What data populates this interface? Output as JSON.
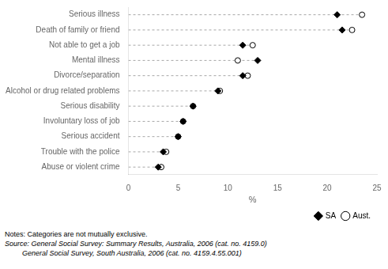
{
  "chart_data": {
    "type": "dot",
    "categories": [
      "Serious illness",
      "Death of family or friend",
      "Not able to get a job",
      "Mental illness",
      "Divorce/separation",
      "Alcohol or drug related problems",
      "Serious disability",
      "Involuntary loss of job",
      "Serious accident",
      "Trouble with the police",
      "Abuse or violent crime"
    ],
    "series": [
      {
        "name": "SA",
        "color": "#000000",
        "marker": "diamond",
        "values": [
          21.0,
          21.5,
          11.5,
          13.0,
          11.5,
          9.0,
          6.5,
          5.5,
          5.0,
          3.5,
          3.0
        ]
      },
      {
        "name": "Aust.",
        "color": "#ffffff",
        "marker": "circle",
        "values": [
          23.5,
          22.5,
          12.5,
          11.0,
          12.0,
          9.2,
          6.5,
          5.5,
          5.0,
          3.8,
          3.3
        ]
      }
    ],
    "orientation": "horizontal",
    "xlabel": "%",
    "xlim": [
      0,
      25
    ],
    "xticks": [
      0,
      5,
      10,
      15,
      20,
      25
    ],
    "grid": false,
    "legend": "lower right",
    "annotations": [
      "Notes: Categories are not mutually exclusive.",
      "Source: General Social Survey: Summary Results, Australia, 2006 (cat. no. 4159.0)",
      "General Social Survey, South Australia, 2006 (cat. no. 4159.4.55.001)"
    ]
  }
}
